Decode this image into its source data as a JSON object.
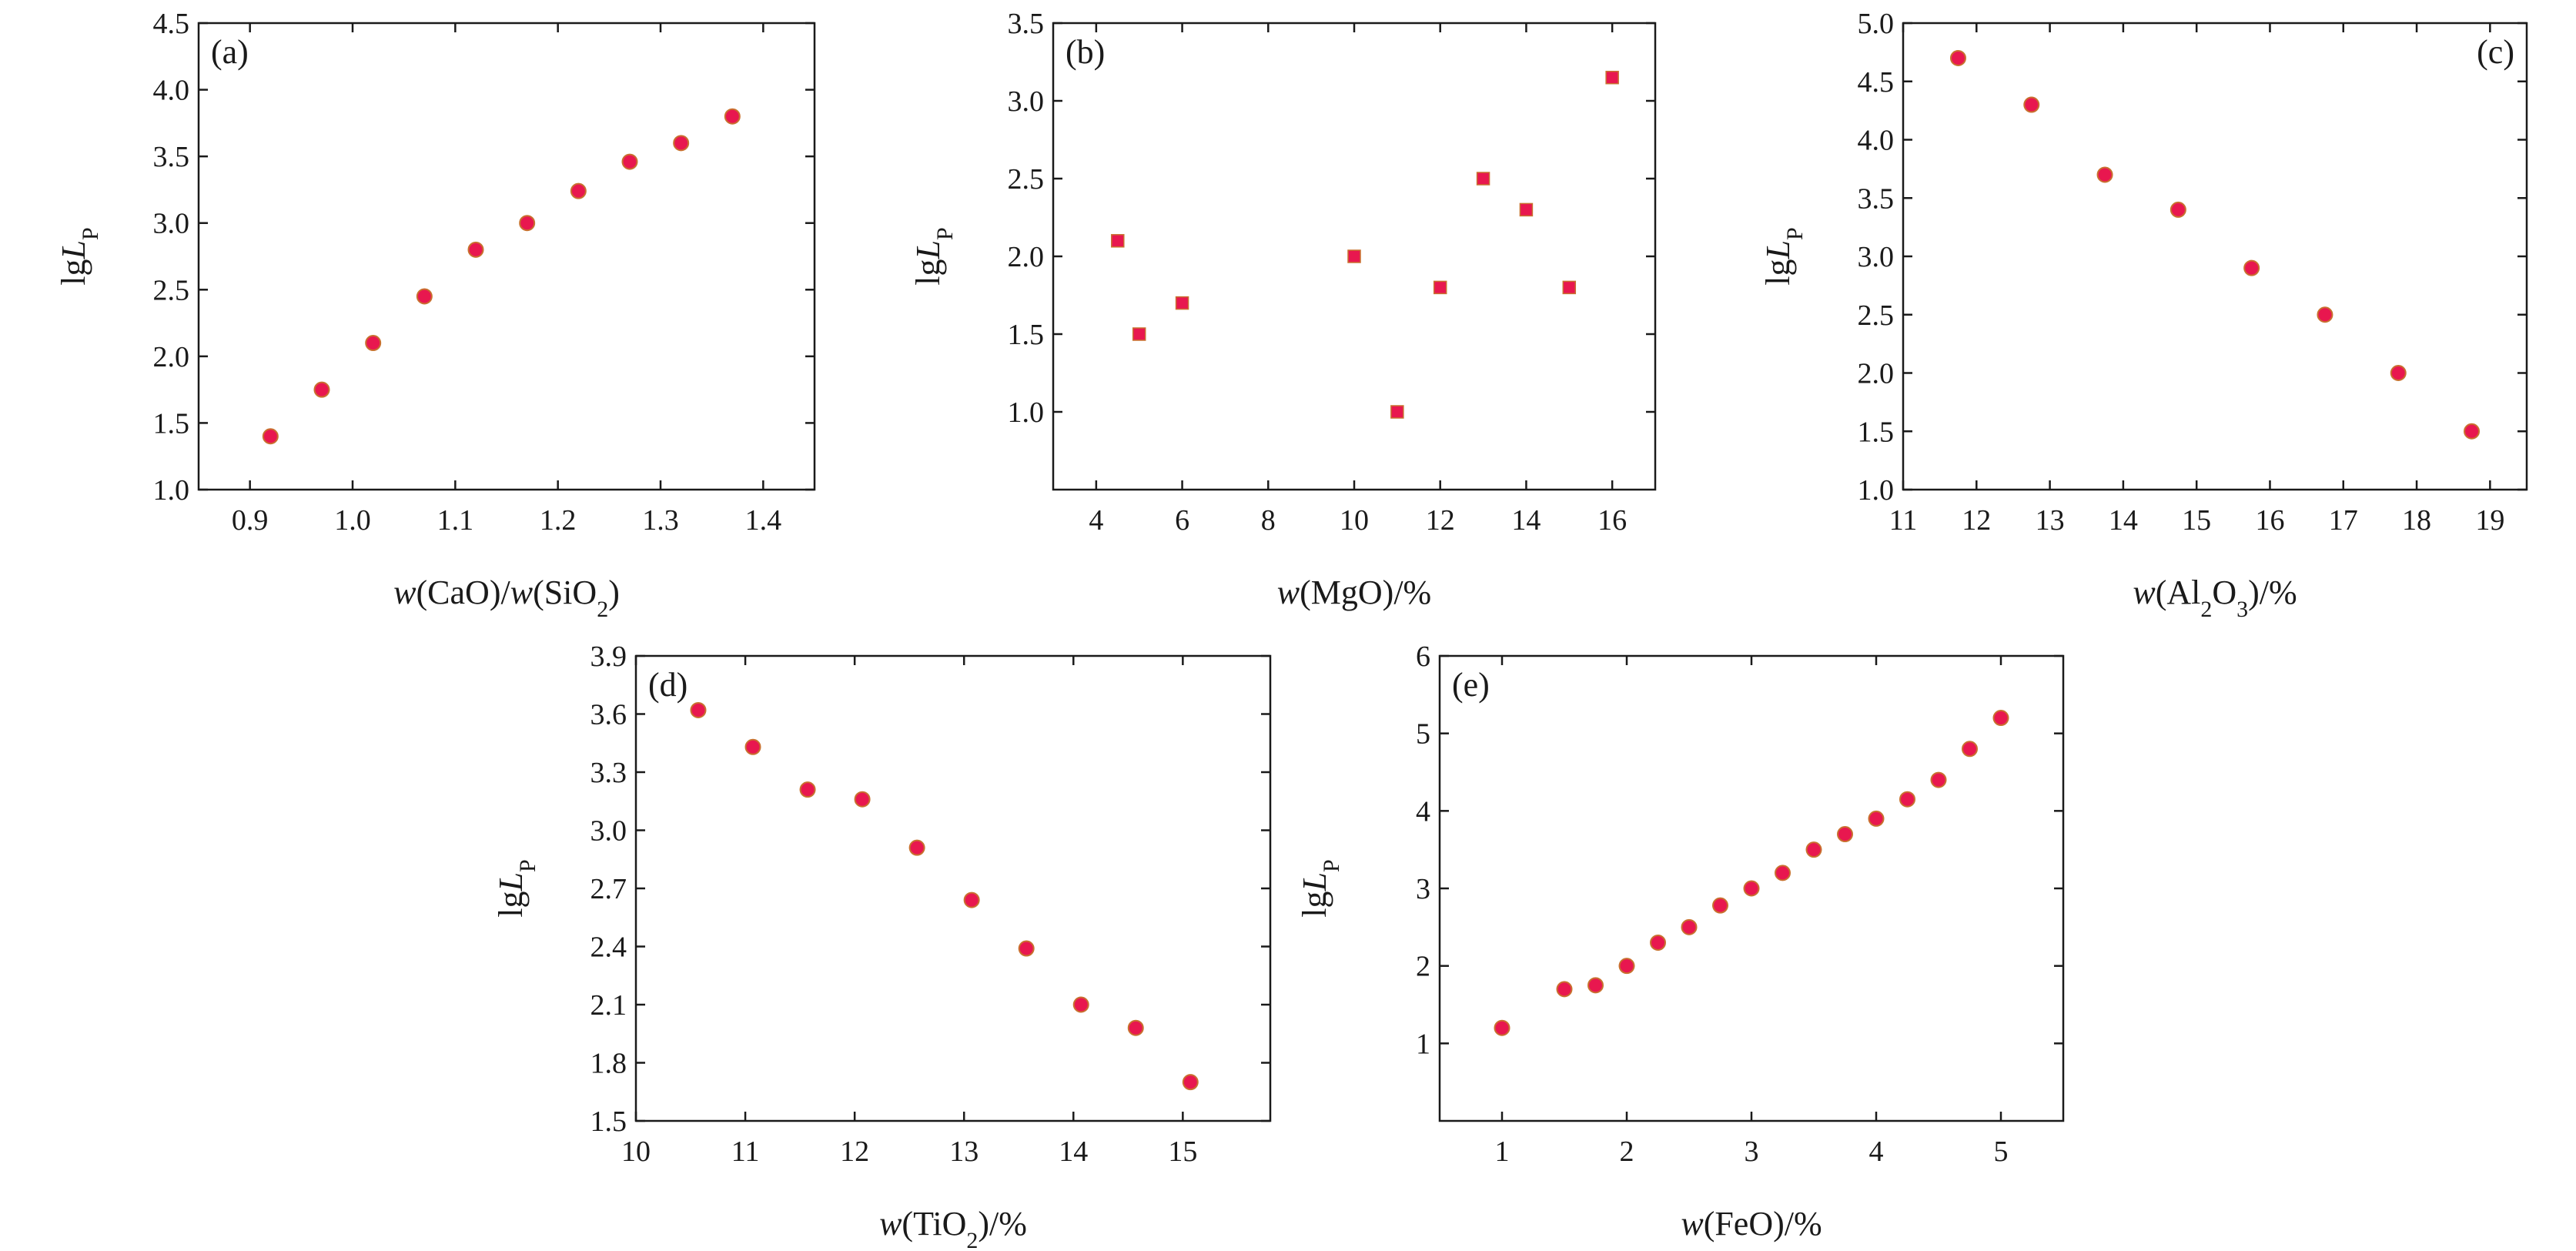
{
  "chart_data": [
    {
      "panel": "(a)",
      "type": "scatter",
      "marker": "circle",
      "tag_position": "top-left",
      "xlabel_parts": [
        {
          "text": "w",
          "italic": true
        },
        {
          "text": "(CaO)/"
        },
        {
          "text": "w",
          "italic": true
        },
        {
          "text": "(SiO"
        },
        {
          "text": "2",
          "sub": true
        },
        {
          "text": ")"
        }
      ],
      "ylabel_parts": [
        {
          "text": "lg"
        },
        {
          "text": "L",
          "italic": true
        },
        {
          "text": "P",
          "sub": true
        }
      ],
      "xlim": [
        0.85,
        1.45
      ],
      "ylim": [
        1.0,
        4.5
      ],
      "xticks": [
        0.9,
        1.0,
        1.1,
        1.2,
        1.3,
        1.4
      ],
      "xtick_labels": [
        "0.9",
        "1.0",
        "1.1",
        "1.2",
        "1.3",
        "1.4"
      ],
      "yticks": [
        1.0,
        1.5,
        2.0,
        2.5,
        3.0,
        3.5,
        4.0,
        4.5
      ],
      "ytick_labels": [
        "1.0",
        "1.5",
        "2.0",
        "2.5",
        "3.0",
        "3.5",
        "4.0",
        "4.5"
      ],
      "x": [
        0.92,
        0.97,
        1.02,
        1.07,
        1.12,
        1.17,
        1.22,
        1.27,
        1.32,
        1.37
      ],
      "y": [
        1.4,
        1.75,
        2.1,
        2.45,
        2.8,
        3.0,
        3.24,
        3.46,
        3.6,
        3.8
      ]
    },
    {
      "panel": "(b)",
      "type": "scatter",
      "marker": "square",
      "tag_position": "top-left",
      "xlabel_parts": [
        {
          "text": "w",
          "italic": true
        },
        {
          "text": "(MgO)/%"
        }
      ],
      "ylabel_parts": [
        {
          "text": "lg"
        },
        {
          "text": "L",
          "italic": true
        },
        {
          "text": "P",
          "sub": true
        }
      ],
      "xlim": [
        3,
        17
      ],
      "ylim": [
        0.5,
        3.5
      ],
      "xticks": [
        4,
        6,
        8,
        10,
        12,
        14,
        16
      ],
      "xtick_labels": [
        "4",
        "6",
        "8",
        "10",
        "12",
        "14",
        "16"
      ],
      "yticks": [
        1.0,
        1.5,
        2.0,
        2.5,
        3.0,
        3.5
      ],
      "ytick_labels": [
        "1.0",
        "1.5",
        "2.0",
        "2.5",
        "3.0",
        "3.5"
      ],
      "x": [
        4.5,
        5,
        6,
        10,
        11,
        12,
        13,
        14,
        15,
        16
      ],
      "y": [
        2.1,
        1.5,
        1.7,
        2.0,
        1.0,
        1.8,
        2.5,
        2.3,
        1.8,
        3.15
      ]
    },
    {
      "panel": "(c)",
      "type": "scatter",
      "marker": "circle",
      "tag_position": "top-right",
      "xlabel_parts": [
        {
          "text": "w",
          "italic": true
        },
        {
          "text": "(Al"
        },
        {
          "text": "2",
          "sub": true
        },
        {
          "text": "O"
        },
        {
          "text": "3",
          "sub": true
        },
        {
          "text": ")/%"
        }
      ],
      "ylabel_parts": [
        {
          "text": "lg"
        },
        {
          "text": "L",
          "italic": true
        },
        {
          "text": "P",
          "sub": true
        }
      ],
      "xlim": [
        11,
        19.5
      ],
      "ylim": [
        1.0,
        5.0
      ],
      "xticks": [
        11,
        12,
        13,
        14,
        15,
        16,
        17,
        18,
        19
      ],
      "xtick_labels": [
        "11",
        "12",
        "13",
        "14",
        "15",
        "16",
        "17",
        "18",
        "19"
      ],
      "yticks": [
        1.0,
        1.5,
        2.0,
        2.5,
        3.0,
        3.5,
        4.0,
        4.5,
        5.0
      ],
      "ytick_labels": [
        "1.0",
        "1.5",
        "2.0",
        "2.5",
        "3.0",
        "3.5",
        "4.0",
        "4.5",
        "5.0"
      ],
      "x": [
        11.75,
        12.75,
        13.75,
        14.75,
        15.75,
        16.75,
        17.75,
        18.75
      ],
      "y": [
        4.7,
        4.3,
        3.7,
        3.4,
        2.9,
        2.5,
        2.0,
        1.5
      ]
    },
    {
      "panel": "(d)",
      "type": "scatter",
      "marker": "circle",
      "tag_position": "top-left",
      "xlabel_parts": [
        {
          "text": "w",
          "italic": true
        },
        {
          "text": "(TiO"
        },
        {
          "text": "2",
          "sub": true
        },
        {
          "text": ")/%"
        }
      ],
      "ylabel_parts": [
        {
          "text": "lg"
        },
        {
          "text": "L",
          "italic": true
        },
        {
          "text": "P",
          "sub": true
        }
      ],
      "xlim": [
        10,
        15.8
      ],
      "ylim": [
        1.5,
        3.9
      ],
      "xticks": [
        10,
        11,
        12,
        13,
        14,
        15
      ],
      "xtick_labels": [
        "10",
        "11",
        "12",
        "13",
        "14",
        "15"
      ],
      "yticks": [
        1.5,
        1.8,
        2.1,
        2.4,
        2.7,
        3.0,
        3.3,
        3.6,
        3.9
      ],
      "ytick_labels": [
        "1.5",
        "1.8",
        "2.1",
        "2.4",
        "2.7",
        "3.0",
        "3.3",
        "3.6",
        "3.9"
      ],
      "x": [
        10.57,
        11.07,
        11.57,
        12.07,
        12.57,
        13.07,
        13.57,
        14.07,
        14.57,
        15.07
      ],
      "y": [
        3.62,
        3.43,
        3.21,
        3.16,
        2.91,
        2.64,
        2.39,
        2.1,
        1.98,
        1.7
      ]
    },
    {
      "panel": "(e)",
      "type": "scatter",
      "marker": "circle",
      "tag_position": "top-left",
      "xlabel_parts": [
        {
          "text": "w",
          "italic": true
        },
        {
          "text": "(FeO)/%"
        }
      ],
      "ylabel_parts": [
        {
          "text": "lg"
        },
        {
          "text": "L",
          "italic": true
        },
        {
          "text": "P",
          "sub": true
        }
      ],
      "xlim": [
        0.5,
        5.5
      ],
      "ylim": [
        0,
        6
      ],
      "xticks": [
        1,
        2,
        3,
        4,
        5
      ],
      "xtick_labels": [
        "1",
        "2",
        "3",
        "4",
        "5"
      ],
      "yticks": [
        1,
        2,
        3,
        4,
        5,
        6
      ],
      "ytick_labels": [
        "1",
        "2",
        "3",
        "4",
        "5",
        "6"
      ],
      "x": [
        1.0,
        1.5,
        1.75,
        2.0,
        2.25,
        2.5,
        2.75,
        3.0,
        3.25,
        3.5,
        3.75,
        4.0,
        4.25,
        4.5,
        4.75,
        5.0
      ],
      "y": [
        1.2,
        1.7,
        1.75,
        2.0,
        2.3,
        2.5,
        2.78,
        3.0,
        3.2,
        3.5,
        3.7,
        3.9,
        4.15,
        4.4,
        4.8,
        5.2
      ]
    }
  ],
  "style": {
    "marker_fill": "#e8174f",
    "marker_edge": "#c9702f",
    "axis_color": "#1a1a1a",
    "background": "#ffffff"
  }
}
